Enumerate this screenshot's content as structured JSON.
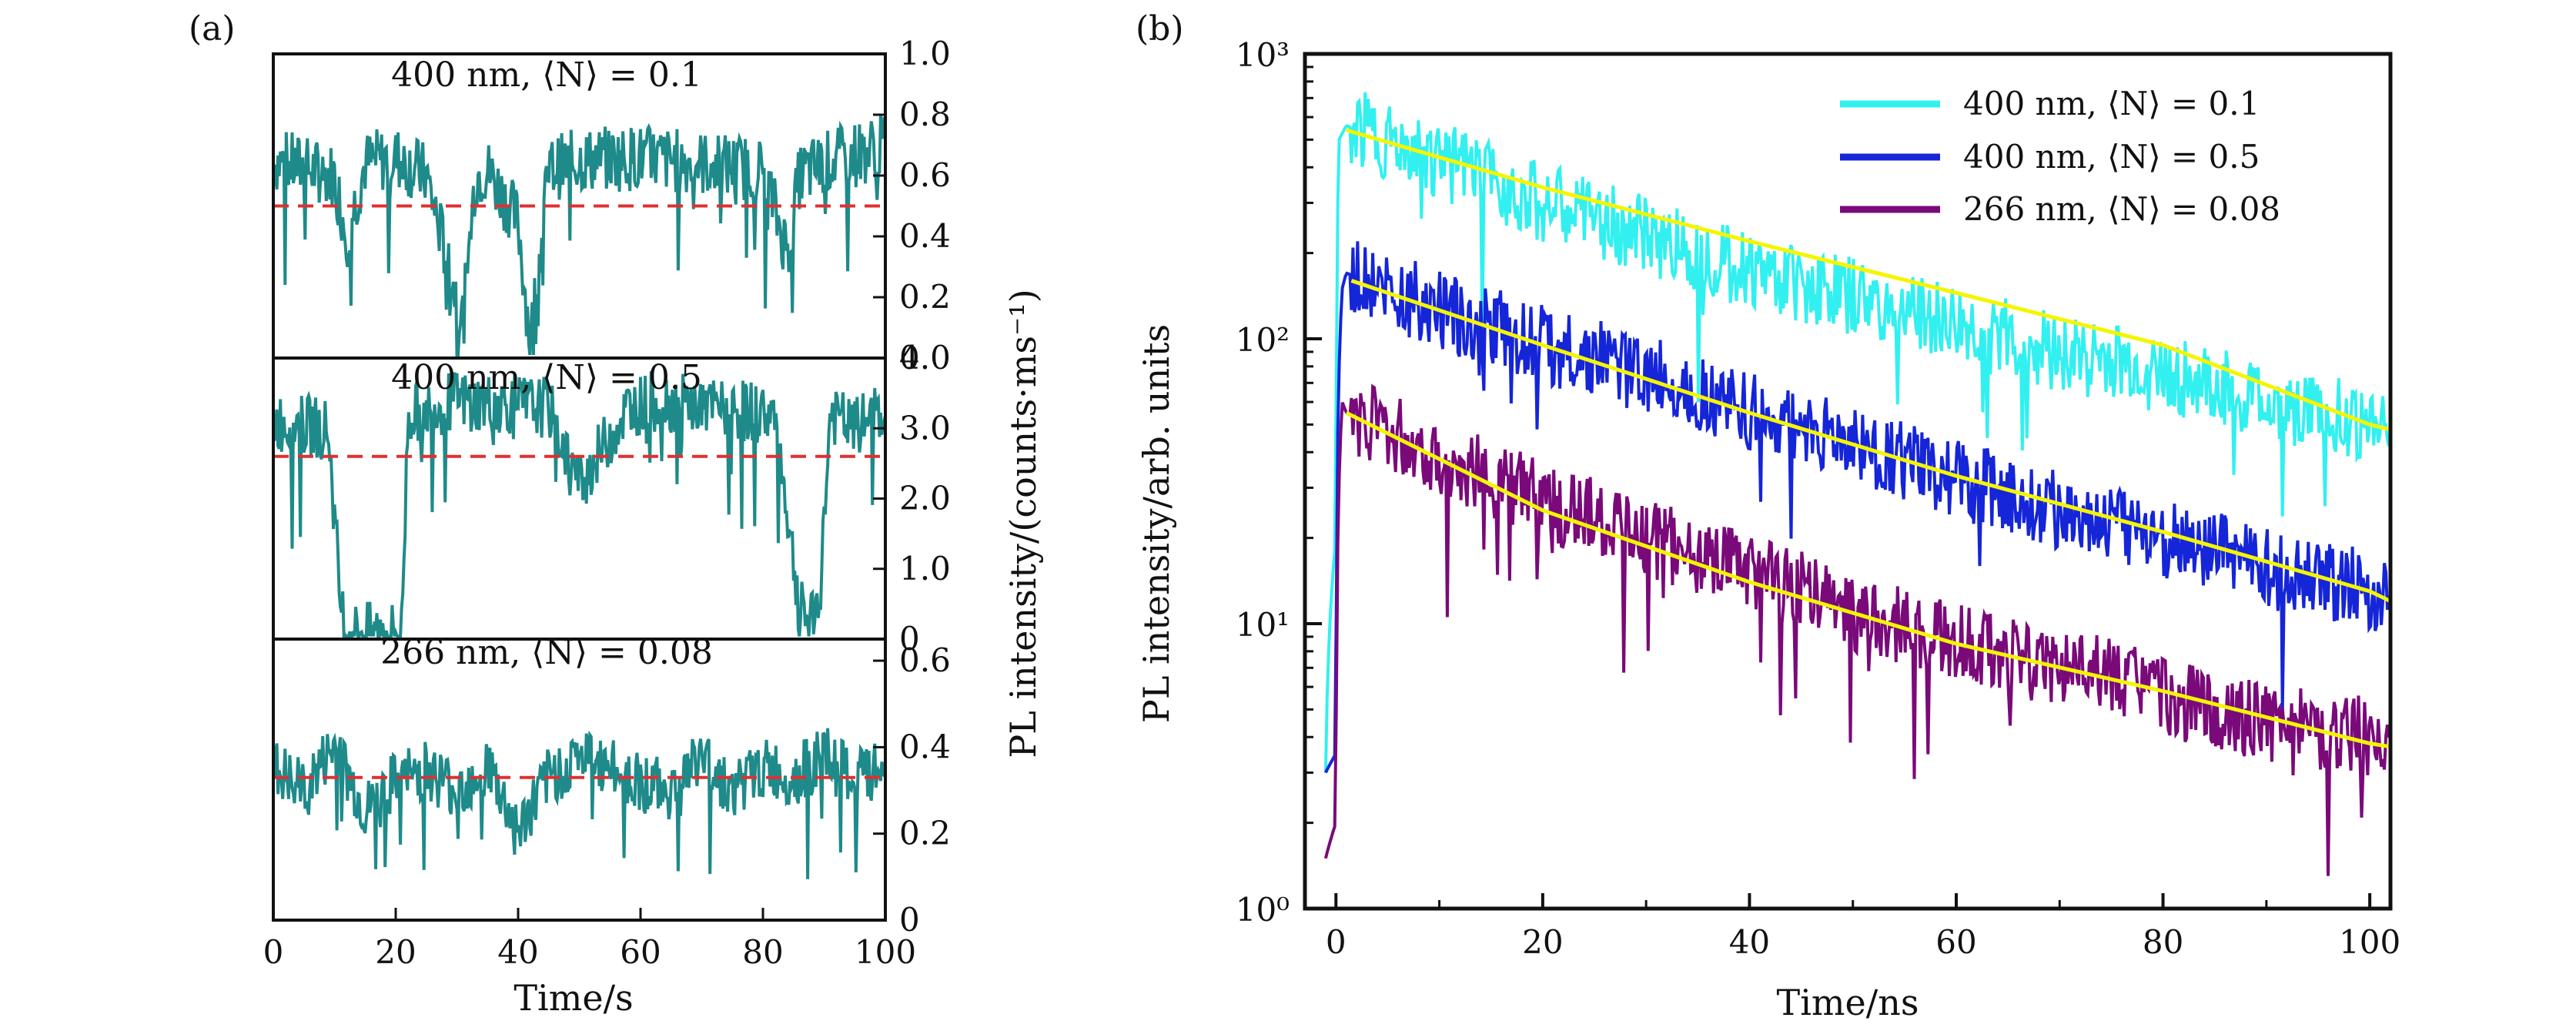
{
  "panel_labels": {
    "a": "(a)",
    "b": "(b)"
  },
  "chart_data": [
    {
      "panel": "(a)",
      "type": "line",
      "xlabel": "Time/s",
      "ylabel": "PL intensity/(counts·ms⁻¹)",
      "xlim": [
        0,
        100
      ],
      "xticks": [
        "0",
        "20",
        "40",
        "60",
        "80",
        "100"
      ],
      "colors": {
        "trace": "#1f8a8a",
        "threshold": "#e03030"
      },
      "subplots": [
        {
          "label": "400 nm, ⟨N⟩ = 0.1",
          "ylim": [
            0,
            1.0
          ],
          "yticks": [
            "0",
            "0.2",
            "0.4",
            "0.6",
            "0.8",
            "1.0"
          ],
          "threshold": 0.5,
          "on_level": 0.65,
          "off_level": 0.1,
          "x": [
            0,
            10,
            12,
            15,
            20,
            25,
            31,
            33,
            35,
            40,
            42,
            45,
            50,
            60,
            70,
            80,
            84,
            86,
            90,
            100
          ],
          "values": [
            0.65,
            0.6,
            0.4,
            0.64,
            0.66,
            0.6,
            0.12,
            0.6,
            0.62,
            0.45,
            0.05,
            0.62,
            0.65,
            0.66,
            0.64,
            0.62,
            0.35,
            0.6,
            0.64,
            0.7
          ]
        },
        {
          "label": "400 nm, ⟨N⟩ = 0.5",
          "ylim": [
            0,
            4.0
          ],
          "yticks": [
            "0",
            "1.0",
            "2.0",
            "3.0",
            "4.0"
          ],
          "threshold": 2.6,
          "on_level": 3.3,
          "off_level": 0.1,
          "x": [
            0,
            9,
            11,
            12,
            21,
            22,
            30,
            45,
            50,
            58,
            63,
            70,
            82,
            86,
            89,
            91,
            95,
            100
          ],
          "values": [
            3.1,
            3.0,
            0.5,
            0.1,
            0.1,
            3.2,
            3.4,
            3.3,
            2.2,
            3.3,
            3.4,
            3.3,
            3.2,
            0.4,
            0.2,
            3.2,
            3.0,
            3.3
          ]
        },
        {
          "label": "266 nm, ⟨N⟩ = 0.08",
          "ylim": [
            0,
            0.65
          ],
          "yticks": [
            "0",
            "0.2",
            "0.4",
            "0.6"
          ],
          "threshold": 0.33,
          "on_level": 0.4,
          "off_level": 0.1,
          "x": [
            0,
            5,
            10,
            15,
            20,
            25,
            30,
            35,
            40,
            45,
            50,
            55,
            60,
            65,
            70,
            75,
            80,
            85,
            90,
            95,
            100
          ],
          "values": [
            0.35,
            0.3,
            0.4,
            0.25,
            0.32,
            0.35,
            0.3,
            0.36,
            0.2,
            0.33,
            0.38,
            0.35,
            0.32,
            0.3,
            0.38,
            0.3,
            0.35,
            0.33,
            0.38,
            0.32,
            0.35
          ]
        }
      ]
    },
    {
      "panel": "(b)",
      "type": "line",
      "yscale": "log",
      "xlabel": "Time/ns",
      "ylabel": "PL intensity/arb. units",
      "xlim": [
        -3,
        102
      ],
      "ylim": [
        1,
        1000
      ],
      "xticks": [
        "0",
        "20",
        "40",
        "60",
        "80",
        "100"
      ],
      "yticks": [
        "10⁰",
        "10¹",
        "10²",
        "10³"
      ],
      "legend_position": "top-right",
      "fit_color": "#f5f500",
      "series": [
        {
          "name": "400 nm, ⟨N⟩ = 0.1",
          "color": "#33f0f0",
          "x": [
            -1,
            0,
            0.3,
            1,
            10,
            20,
            30,
            40,
            50,
            60,
            70,
            80,
            90,
            100,
            102
          ],
          "values": [
            3,
            20,
            500,
            560,
            420,
            300,
            230,
            175,
            140,
            110,
            90,
            75,
            60,
            50,
            48
          ],
          "fit_x": [
            1,
            20,
            40,
            60,
            80,
            100,
            102
          ],
          "fit": [
            540,
            340,
            220,
            145,
            95,
            50,
            48
          ]
        },
        {
          "name": "400 nm, ⟨N⟩ = 0.5",
          "color": "#1525d8",
          "x": [
            -1,
            0,
            0.6,
            1,
            10,
            20,
            30,
            40,
            50,
            60,
            70,
            80,
            90,
            100,
            102
          ],
          "values": [
            3,
            3.5,
            150,
            170,
            125,
            95,
            75,
            55,
            42,
            32,
            25,
            20,
            16,
            13,
            12
          ],
          "fit_x": [
            1.5,
            20,
            40,
            60,
            80,
            100,
            102
          ],
          "fit": [
            160,
            95,
            55,
            33,
            21,
            13,
            12
          ]
        },
        {
          "name": "266 nm, ⟨N⟩ = 0.08",
          "color": "#7a0a7a",
          "x": [
            -1,
            0,
            0.6,
            1,
            10,
            20,
            30,
            40,
            50,
            60,
            70,
            76,
            80,
            90,
            100,
            102
          ],
          "values": [
            1.5,
            2,
            60,
            55,
            38,
            27,
            20,
            15,
            11,
            8.5,
            7,
            6.5,
            5.5,
            4.5,
            4,
            4
          ],
          "fit_x": [
            1,
            20,
            40,
            60,
            80,
            100,
            102
          ],
          "fit": [
            55,
            25,
            14,
            8.5,
            5.8,
            3.8,
            3.7
          ]
        }
      ]
    }
  ]
}
